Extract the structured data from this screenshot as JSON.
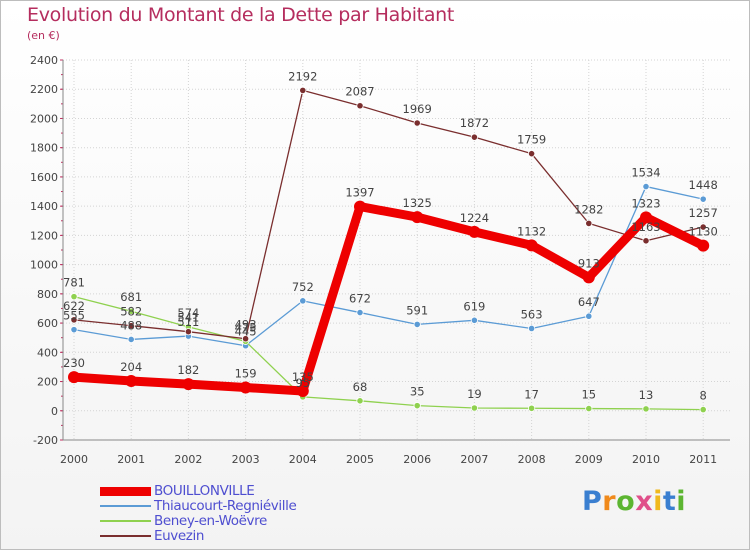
{
  "chart_data": {
    "type": "line",
    "title": "Evolution du Montant de la Dette par Habitant",
    "subtitle": "(en €)",
    "xlabel": "",
    "ylabel": "",
    "ylim": [
      -200,
      2400
    ],
    "yticks": [
      -200,
      0,
      200,
      400,
      600,
      800,
      1000,
      1200,
      1400,
      1600,
      1800,
      2000,
      2200,
      2400
    ],
    "categories": [
      "2000",
      "2001",
      "2002",
      "2003",
      "2004",
      "2005",
      "2006",
      "2007",
      "2008",
      "2009",
      "2010",
      "2011"
    ],
    "legend_position": "bottom-left",
    "series": [
      {
        "name": "BOUILLONVILLE",
        "color": "#ee0000",
        "thick": true,
        "values": [
          230,
          204,
          182,
          159,
          135,
          1397,
          1325,
          1224,
          1132,
          913,
          1323,
          1130
        ]
      },
      {
        "name": "Thiaucourt-Regniéville",
        "color": "#5b9bd5",
        "thick": false,
        "values": [
          555,
          488,
          511,
          445,
          752,
          672,
          591,
          619,
          563,
          647,
          1534,
          1448
        ]
      },
      {
        "name": "Beney-en-Woëvre",
        "color": "#8fd14f",
        "thick": false,
        "values": [
          781,
          681,
          574,
          475,
          95,
          68,
          35,
          19,
          17,
          15,
          13,
          8
        ]
      },
      {
        "name": "Euvezin",
        "color": "#7a2e2e",
        "thick": false,
        "values": [
          622,
          582,
          541,
          493,
          2192,
          2087,
          1969,
          1872,
          1759,
          1282,
          1163,
          1257
        ]
      }
    ]
  },
  "logo": {
    "letters": [
      "P",
      "r",
      "o",
      "x",
      "i",
      "t",
      "i"
    ],
    "colors": [
      "#3a7fd0",
      "#f08a1c",
      "#5cb531",
      "#e04f8a",
      "#f0b81c",
      "#3a7fd0",
      "#5cb531"
    ]
  }
}
